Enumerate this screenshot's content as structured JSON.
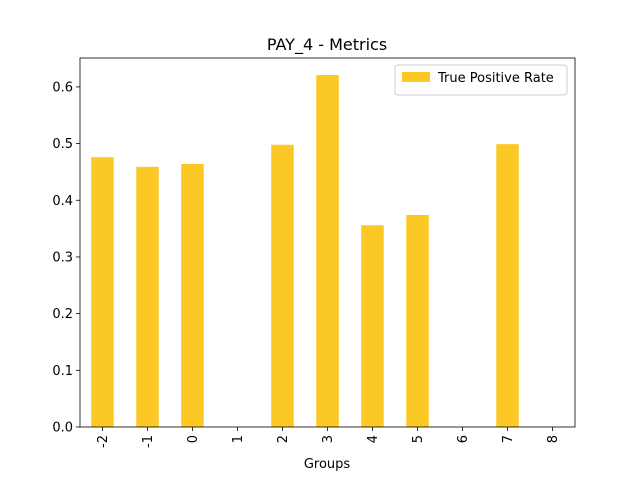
{
  "chart_data": {
    "type": "bar",
    "title": "PAY_4 - Metrics",
    "x_label": "Groups",
    "categories": [
      "-2",
      "-1",
      "0",
      "1",
      "2",
      "3",
      "4",
      "5",
      "6",
      "7",
      "8"
    ],
    "series": [
      {
        "name": "True Positive Rate",
        "color": "#fcc826",
        "values": [
          0.476,
          0.459,
          0.464,
          0,
          0.498,
          0.621,
          0.356,
          0.374,
          0,
          0.499,
          0
        ]
      }
    ],
    "ylim": [
      0,
      0.651
    ],
    "yticks": [
      {
        "value": 0,
        "label": "0.0"
      },
      0.1,
      0.2,
      0.3,
      0.4,
      0.5,
      0.6
    ],
    "grid": false,
    "legend": "upper right"
  }
}
